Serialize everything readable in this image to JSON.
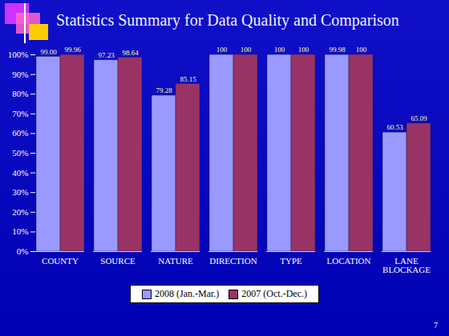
{
  "chart_data": {
    "type": "bar",
    "title": "Statistics Summary for Data Quality and Comparison",
    "categories": [
      "COUNTY",
      "SOURCE",
      "NATURE",
      "DIRECTION",
      "TYPE",
      "LOCATION",
      "LANE BLOCKAGE"
    ],
    "series": [
      {
        "name": "2008 (Jan.-Mar.)",
        "color": "#9999ff",
        "values": [
          99.0,
          97.23,
          79.28,
          100,
          100,
          99.98,
          60.53
        ],
        "value_labels": [
          "99.00",
          "97.23",
          "79.28",
          "100",
          "100",
          "99.98",
          "60.53"
        ]
      },
      {
        "name": "2007 (Oct.-Dec.)",
        "color": "#993366",
        "values": [
          99.96,
          98.64,
          85.15,
          100,
          100,
          100,
          65.09
        ],
        "value_labels": [
          "99.96",
          "98.64",
          "85.15",
          "100",
          "100",
          "100",
          "65.09"
        ]
      }
    ],
    "ylim": [
      0,
      100
    ],
    "yticks": [
      {
        "value": 0,
        "label": "0%"
      },
      {
        "value": 10,
        "label": "10%"
      },
      {
        "value": 20,
        "label": "20%"
      },
      {
        "value": 30,
        "label": "30%"
      },
      {
        "value": 40,
        "label": "40%"
      },
      {
        "value": 50,
        "label": "50%"
      },
      {
        "value": 60,
        "label": "60%"
      },
      {
        "value": 70,
        "label": "70%"
      },
      {
        "value": 80,
        "label": "80%"
      },
      {
        "value": 90,
        "label": "90%"
      },
      {
        "value": 100,
        "label": "100%"
      }
    ],
    "grid": false,
    "legend": "bottom",
    "data_labels": true,
    "annotations": [
      "7"
    ]
  }
}
